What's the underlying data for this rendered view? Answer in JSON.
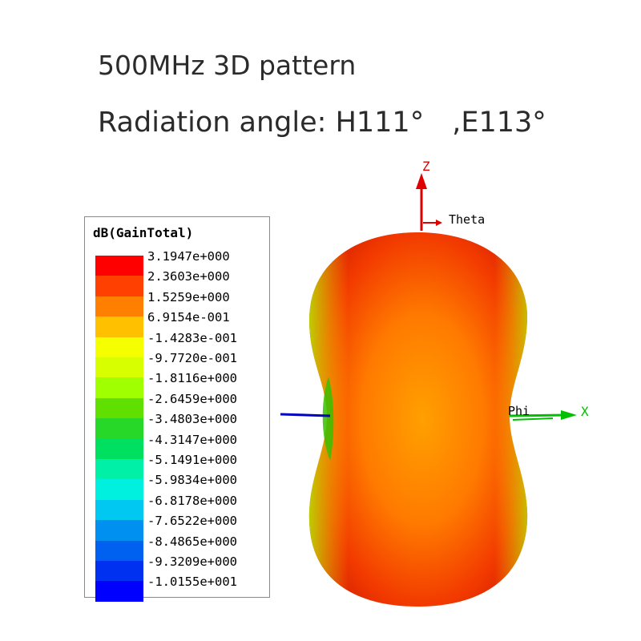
{
  "header": {
    "title": "500MHz 3D pattern",
    "subtitle": "Radiation angle: H111°　,E113°"
  },
  "legend": {
    "title": "dB(GainTotal)",
    "values": [
      "3.1947e+000",
      "2.3603e+000",
      "1.5259e+000",
      "6.9154e-001",
      "-1.4283e-001",
      "-9.7720e-001",
      "-1.8116e+000",
      "-2.6459e+000",
      "-3.4803e+000",
      "-4.3147e+000",
      "-5.1491e+000",
      "-5.9834e+000",
      "-6.8178e+000",
      "-7.6522e+000",
      "-8.4865e+000",
      "-9.3209e+000",
      "-1.0155e+001"
    ],
    "colors": [
      "#ff0000",
      "#ff4000",
      "#ff8000",
      "#ffc000",
      "#f6ff00",
      "#d8ff00",
      "#a0ff00",
      "#60e000",
      "#28d828",
      "#00e060",
      "#00f0a8",
      "#00f0e0",
      "#00c8f0",
      "#0090f0",
      "#0060f0",
      "#0030f0",
      "#0000ff"
    ]
  },
  "axes": {
    "z": "Z",
    "theta": "Theta",
    "phi": "Phi",
    "x": "X",
    "colors": {
      "z": "#e00000",
      "x": "#00c000",
      "y": "#0000c0"
    }
  },
  "pattern_colors": {
    "max": "#ff2a00",
    "mid": "#ffa000",
    "low": "#2fc000"
  }
}
